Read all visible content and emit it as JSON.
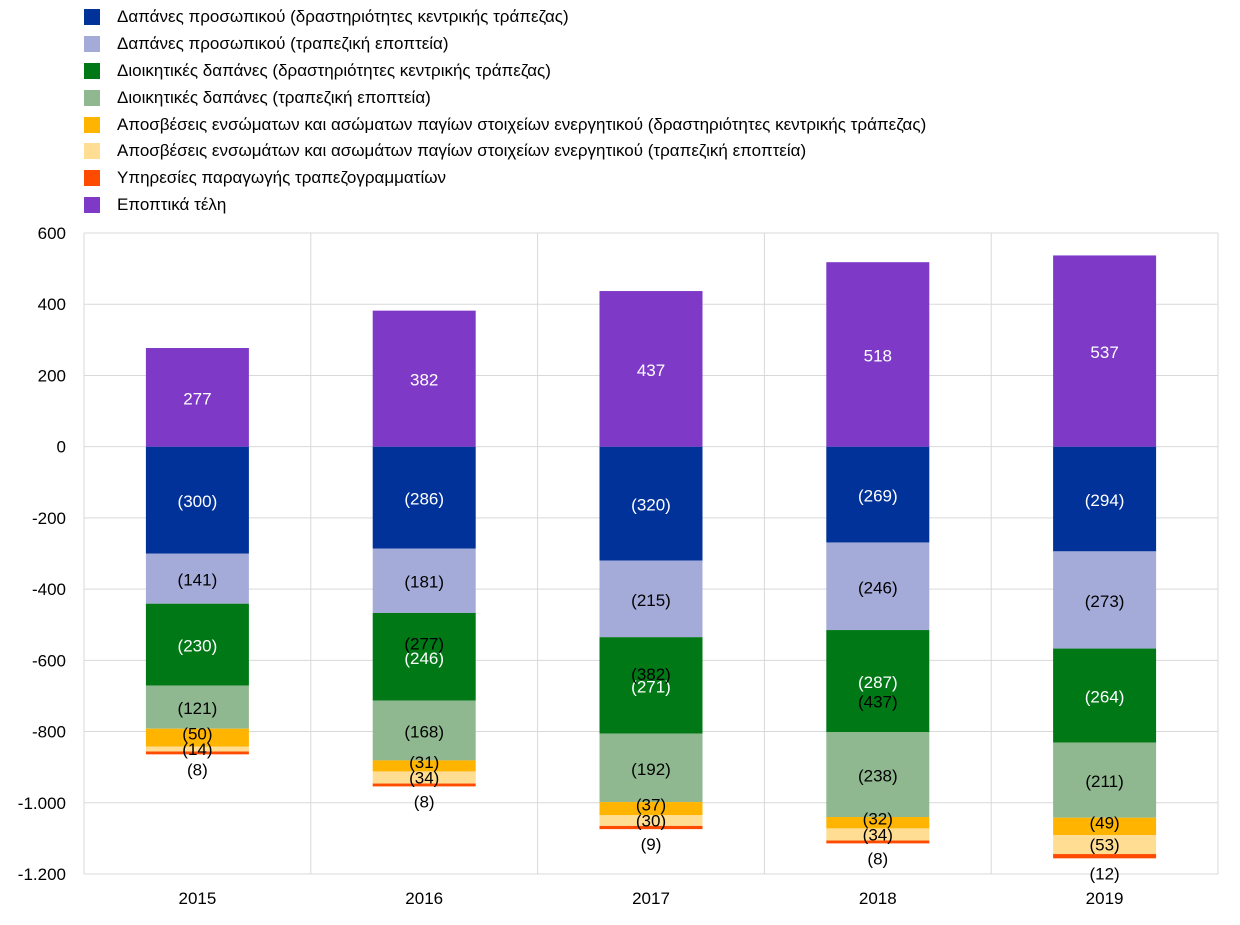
{
  "chart_data": {
    "type": "bar",
    "stacked": true,
    "categories": [
      "2015",
      "2016",
      "2017",
      "2018",
      "2019"
    ],
    "ylim": [
      -1200,
      600
    ],
    "yticks": [
      600,
      400,
      200,
      0,
      -200,
      -400,
      -600,
      -800,
      -1000,
      -1200
    ],
    "ytick_labels": [
      "600",
      "400",
      "200",
      "0",
      "-200",
      "-400",
      "-600",
      "-800",
      "-1.000",
      "-1.200"
    ],
    "grid": true,
    "legend_position": "top",
    "series": [
      {
        "name": "Δαπάνες προσωπικού (δραστηριότητες κεντρικής τράπεζας)",
        "color": "#003299",
        "values": [
          -300,
          -286,
          -320,
          -269,
          -294
        ],
        "labels": [
          "(300)",
          "(286)",
          "(320)",
          "(269)",
          "(294)"
        ]
      },
      {
        "name": "Δαπάνες προσωπικού (τραπεζική εποπτεία)",
        "color": "#A4ABD9",
        "values": [
          -141,
          -181,
          -215,
          -246,
          -273
        ],
        "labels": [
          "(141)",
          "(181)",
          "(215)",
          "(246)",
          "(273)"
        ]
      },
      {
        "name": "Διοικητικές δαπάνες (δραστηριότητες κεντρικής τράπεζας)",
        "color": "#007816",
        "values": [
          -230,
          -246,
          -271,
          -287,
          -264
        ],
        "labels": [
          "(230)",
          "(246)",
          "(271)",
          "(287)",
          "(264)"
        ]
      },
      {
        "name": "Διοικητικές δαπάνες (τραπεζική εποπτεία)",
        "color": "#8FB890",
        "values": [
          -121,
          -168,
          -192,
          -238,
          -211
        ],
        "labels": [
          "(121)",
          "(168)",
          "(192)",
          "(238)",
          "(211)"
        ]
      },
      {
        "name": "Αποσβέσεις ενσώματων και ασώματων παγίων στοιχείων ενεργητικού (δραστηριότητες κεντρικής τράπεζας)",
        "color": "#FFB400",
        "values": [
          -50,
          -31,
          -37,
          -32,
          -49
        ],
        "labels": [
          "(50)",
          "(31)",
          "(37)",
          "(32)",
          "(49)"
        ]
      },
      {
        "name": "Αποσβέσεις ενσωμάτων και ασωμάτων παγίων στοιχείων ενεργητικού (τραπεζική εποπτεία)",
        "color": "#FFDD92",
        "values": [
          -14,
          -34,
          -30,
          -34,
          -53
        ],
        "labels": [
          "(14)",
          "(34)",
          "(30)",
          "(34)",
          "(53)"
        ]
      },
      {
        "name": "Υπηρεσίες παραγωγής τραπεζογραμματίων",
        "color": "#FF4B00",
        "values": [
          -8,
          -8,
          -9,
          -8,
          -12
        ],
        "labels": [
          "(8)",
          "(8)",
          "(9)",
          "(8)",
          "(12)"
        ]
      },
      {
        "name": "Εποπτικά τέλη",
        "color": "#7E3AC7",
        "values": [
          277,
          382,
          437,
          518,
          537
        ],
        "labels": [
          "277",
          "382",
          "437",
          "518",
          "537"
        ]
      }
    ],
    "annotations": [
      {
        "text": "(277)",
        "x": 1.5,
        "y": -553
      },
      {
        "text": "(382)",
        "x": 2.5,
        "y": -638
      },
      {
        "text": "(437)",
        "x": 3.5,
        "y": -715
      }
    ]
  }
}
